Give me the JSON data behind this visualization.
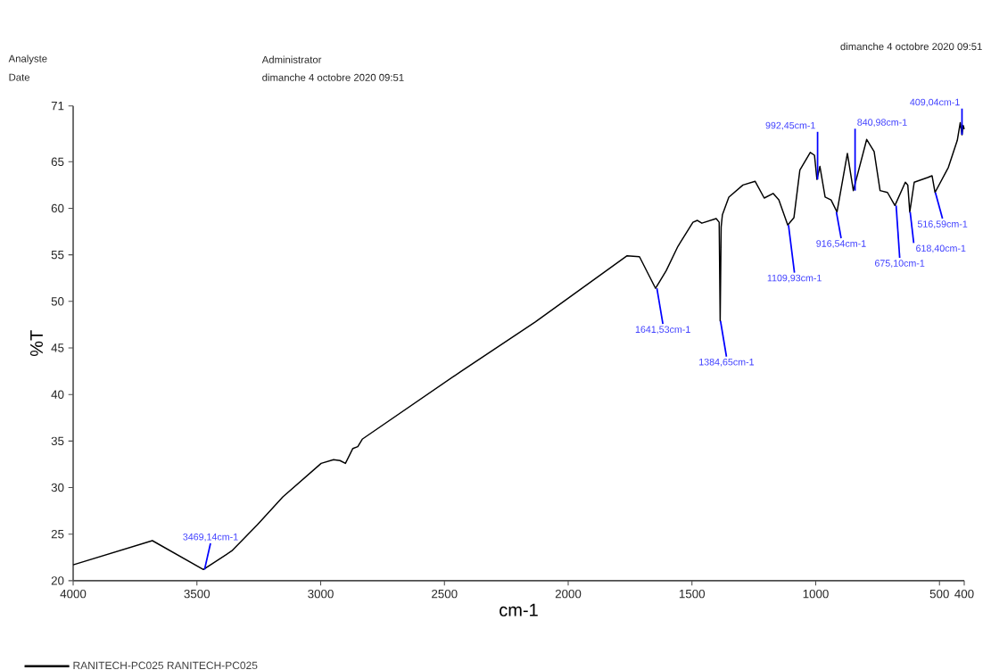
{
  "chart_data": {
    "type": "line",
    "xlabel": "cm-1",
    "ylabel": "%T",
    "xlim": [
      4000,
      400
    ],
    "ylim": [
      20,
      71
    ],
    "xticks": [
      4000,
      3500,
      3000,
      2500,
      2000,
      1500,
      1000,
      500,
      400
    ],
    "yticks": [
      20,
      25,
      30,
      35,
      40,
      45,
      50,
      55,
      60,
      65,
      71
    ],
    "legend": "bottom",
    "series": [
      {
        "name": "RANITECH-PC025    RANITECH-PC025",
        "color": "#000000",
        "x": [
          4000,
          3680,
          3474,
          3359,
          3256,
          3153,
          2998,
          2948,
          2922,
          2900,
          2870,
          2850,
          2832,
          2432,
          2133,
          1762,
          1712,
          1647,
          1604,
          1557,
          1496,
          1478,
          1460,
          1402,
          1390,
          1386,
          1382,
          1377,
          1351,
          1294,
          1245,
          1208,
          1172,
          1149,
          1113,
          1088,
          1064,
          1022,
          1005,
          995,
          983,
          962,
          938,
          914,
          872,
          848,
          794,
          764,
          740,
          710,
          680,
          638,
          628,
          620,
          602,
          548,
          530,
          518,
          464,
          428,
          416,
          409,
          404,
          400
        ],
        "values": [
          21.7,
          24.3,
          21.2,
          23.2,
          26.0,
          29.0,
          32.6,
          33.0,
          32.9,
          32.6,
          34.2,
          34.4,
          35.2,
          42.5,
          47.8,
          54.9,
          54.8,
          51.4,
          53.3,
          55.9,
          58.5,
          58.7,
          58.4,
          58.9,
          58.5,
          47.9,
          58.0,
          59.3,
          61.2,
          62.5,
          62.9,
          61.1,
          61.6,
          60.9,
          58.2,
          59.0,
          64.1,
          66.0,
          65.7,
          63.1,
          64.5,
          61.2,
          60.9,
          59.6,
          65.9,
          61.9,
          67.4,
          66.1,
          61.9,
          61.7,
          60.3,
          62.8,
          62.5,
          59.6,
          62.8,
          63.3,
          63.5,
          61.7,
          64.4,
          67.3,
          69.2,
          67.9,
          68.9,
          68.5
        ]
      }
    ],
    "annotations": [
      "Analyste",
      "Administrator",
      "Date",
      "dimanche 4 octobre 2020 09:51",
      "dimanche 4 octobre 2020 09:51",
      {
        "text": "3469,14cm-1",
        "x": 3469.14,
        "y": 21.2
      },
      {
        "text": "1641,53cm-1",
        "x": 1641.53,
        "y": 51.4
      },
      {
        "text": "1384,65cm-1",
        "x": 1384.65,
        "y": 47.9
      },
      {
        "text": "1109,93cm-1",
        "x": 1109.93,
        "y": 58.2
      },
      {
        "text": "992,45cm-1",
        "x": 992.45,
        "y": 63.1
      },
      {
        "text": "916,54cm-1",
        "x": 916.54,
        "y": 59.6
      },
      {
        "text": "840,98cm-1",
        "x": 840.98,
        "y": 61.9
      },
      {
        "text": "675,10cm-1",
        "x": 675.1,
        "y": 60.3
      },
      {
        "text": "618,40cm-1",
        "x": 618.4,
        "y": 59.6
      },
      {
        "text": "516,59cm-1",
        "x": 516.59,
        "y": 61.7
      },
      {
        "text": "409,04cm-1",
        "x": 409.04,
        "y": 67.9
      }
    ]
  }
}
